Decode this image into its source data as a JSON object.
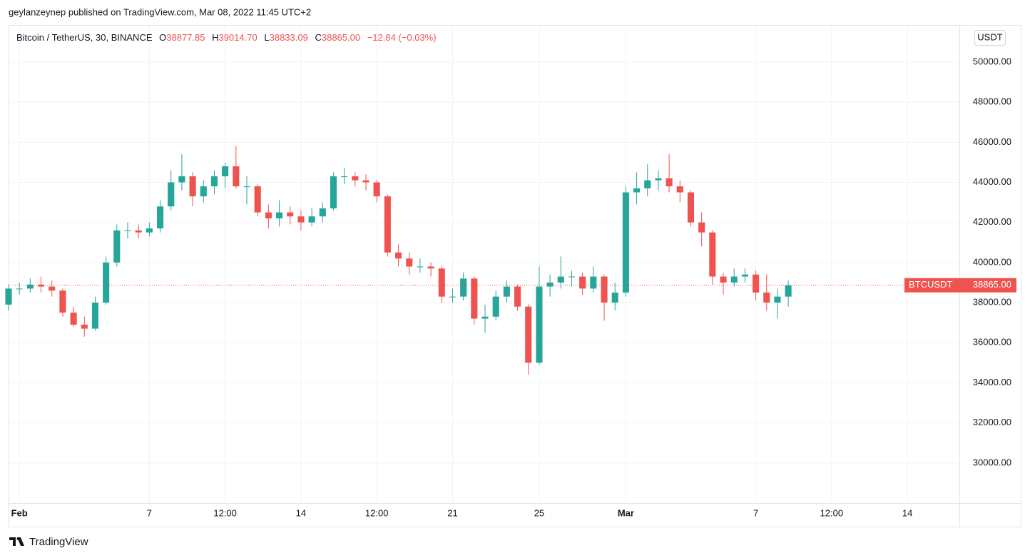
{
  "header": {
    "published": "geylanzeynep published on TradingView.com, Mar 08, 2022 11:45 UTC+2",
    "brand": "TradingView"
  },
  "chart_data": {
    "type": "candlestick",
    "title": "Bitcoin / TetherUS, 30, BINANCE",
    "legend": {
      "o_label": "O",
      "open": "38877.85",
      "h_label": "H",
      "high": "39014.70",
      "l_label": "L",
      "low": "38833.09",
      "c_label": "C",
      "close": "38865.00",
      "change": "−12.84 (−0.03%)"
    },
    "currency": "USDT",
    "symbol": "BTCUSDT",
    "last_price": 38865,
    "last_price_label": "38865.00",
    "up_color": "#26a69a",
    "down_color": "#ef5350",
    "grid": true,
    "xlim": [
      -0.5,
      43.4
    ],
    "xticks": [
      {
        "value": 0,
        "label": "Feb"
      },
      {
        "value": 6,
        "label": "7"
      },
      {
        "value": 9.5,
        "label": "12:00"
      },
      {
        "value": 13,
        "label": "14"
      },
      {
        "value": 16.5,
        "label": "12:00"
      },
      {
        "value": 20,
        "label": "21"
      },
      {
        "value": 24,
        "label": "25"
      },
      {
        "value": 28,
        "label": "Mar"
      },
      {
        "value": 34,
        "label": "7"
      },
      {
        "value": 37.5,
        "label": "12:00"
      },
      {
        "value": 41,
        "label": "14"
      }
    ],
    "ylim": [
      28000,
      51850
    ],
    "yticks": [
      {
        "value": 30000,
        "label": "30000.00"
      },
      {
        "value": 32000,
        "label": "32000.00"
      },
      {
        "value": 34000,
        "label": "34000.00"
      },
      {
        "value": 36000,
        "label": "36000.00"
      },
      {
        "value": 38000,
        "label": "38000.00"
      },
      {
        "value": 40000,
        "label": "40000.00"
      },
      {
        "value": 42000,
        "label": "42000.00"
      },
      {
        "value": 44000,
        "label": "44000.00"
      },
      {
        "value": 46000,
        "label": "46000.00"
      },
      {
        "value": 48000,
        "label": "48000.00"
      },
      {
        "value": 50000,
        "label": "50000.00"
      }
    ],
    "x": [
      -0.5,
      0,
      0.5,
      1,
      1.5,
      2,
      2.5,
      3,
      3.5,
      4,
      4.5,
      5,
      5.5,
      6,
      6.5,
      7,
      7.5,
      8,
      8.5,
      9,
      9.5,
      10,
      10.5,
      11,
      11.5,
      12,
      12.5,
      13,
      13.5,
      14,
      14.5,
      15,
      15.5,
      16,
      16.5,
      17,
      17.5,
      18,
      18.5,
      19,
      19.5,
      20,
      20.5,
      21,
      21.5,
      22,
      22.5,
      23,
      23.5,
      24,
      24.5,
      25,
      25.5,
      26,
      26.5,
      27,
      27.5,
      28,
      28.5,
      29,
      29.5,
      30,
      30.5,
      31,
      31.5,
      32,
      32.5,
      33,
      33.5,
      34,
      34.5,
      35,
      35.5
    ],
    "open": [
      37900,
      38700,
      38700,
      38900,
      38800,
      38600,
      37500,
      36900,
      36700,
      38000,
      40000,
      41600,
      41600,
      41500,
      41700,
      42800,
      44000,
      44300,
      43300,
      43800,
      44300,
      44800,
      43800,
      43800,
      42500,
      42200,
      42500,
      42300,
      42000,
      42300,
      42700,
      44300,
      44300,
      44100,
      44000,
      43300,
      40500,
      40200,
      39800,
      39800,
      39700,
      38300,
      38300,
      39200,
      37200,
      37300,
      38300,
      38800,
      37800,
      35000,
      38800,
      39000,
      39300,
      39300,
      38700,
      39300,
      38000,
      38500,
      43500,
      43700,
      44100,
      44200,
      43800,
      43500,
      42000,
      41500,
      39300,
      39000,
      39300,
      39400,
      38500,
      38000,
      38300
    ],
    "high": [
      38900,
      39000,
      39200,
      39300,
      39100,
      38700,
      37800,
      37300,
      38300,
      40300,
      41900,
      42000,
      41900,
      42000,
      43100,
      44600,
      45400,
      44500,
      44100,
      44600,
      45000,
      45800,
      44300,
      43900,
      42900,
      43100,
      42800,
      42600,
      42700,
      43000,
      44500,
      44700,
      44500,
      44400,
      44100,
      43400,
      40900,
      40500,
      40200,
      40000,
      39800,
      38700,
      39500,
      39300,
      37900,
      38600,
      39100,
      38900,
      37900,
      39800,
      39400,
      40300,
      39600,
      39500,
      39800,
      39400,
      39000,
      43800,
      44500,
      44900,
      44600,
      45400,
      44100,
      43600,
      42500,
      41600,
      39500,
      39700,
      39700,
      39600,
      39400,
      38700,
      39100
    ],
    "low": [
      37600,
      38400,
      38500,
      38500,
      38300,
      37300,
      36800,
      36300,
      36600,
      37900,
      39800,
      41200,
      41200,
      41300,
      41500,
      42600,
      43600,
      42800,
      43000,
      43400,
      43700,
      43700,
      42900,
      42300,
      41700,
      41800,
      41900,
      41600,
      41800,
      42000,
      42600,
      43900,
      43800,
      43600,
      43000,
      40300,
      39800,
      39400,
      39500,
      39300,
      38000,
      38000,
      38100,
      36900,
      36500,
      37100,
      38000,
      37600,
      34400,
      34900,
      38300,
      38700,
      38800,
      38400,
      38500,
      37100,
      37600,
      38300,
      42900,
      43300,
      43600,
      43500,
      43000,
      41800,
      40800,
      38900,
      38400,
      38800,
      39000,
      38100,
      37600,
      37200,
      37800
    ],
    "close": [
      38700,
      38700,
      38900,
      38800,
      38600,
      37500,
      36900,
      36700,
      38000,
      40000,
      41600,
      41600,
      41500,
      41700,
      42800,
      44000,
      44300,
      43300,
      43800,
      44300,
      44800,
      43800,
      43800,
      42500,
      42200,
      42500,
      42300,
      42000,
      42300,
      42700,
      44300,
      44300,
      44100,
      44000,
      43300,
      40500,
      40200,
      39800,
      39800,
      39700,
      38300,
      38300,
      39200,
      37200,
      37300,
      38300,
      38800,
      37800,
      35000,
      38800,
      39000,
      39300,
      39300,
      38700,
      39300,
      38000,
      38500,
      43500,
      43700,
      44100,
      44200,
      43800,
      43500,
      42000,
      41500,
      39300,
      39000,
      39300,
      39400,
      38500,
      38000,
      38300,
      38865
    ]
  }
}
